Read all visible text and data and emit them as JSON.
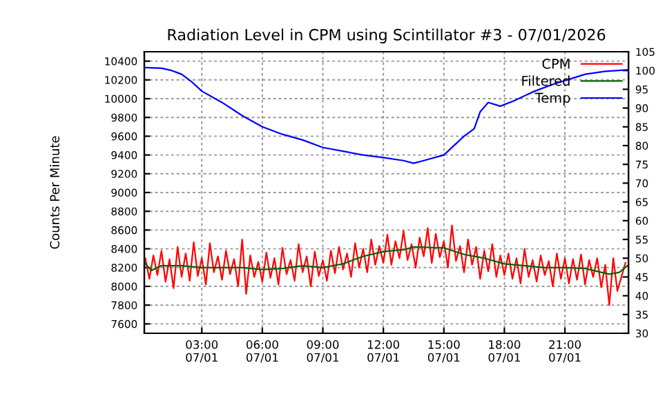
{
  "chart_data": {
    "type": "line",
    "title": "Radiation Level in CPM using Scintillator #3 - 07/01/2026",
    "ylabel": "Counts Per Minute",
    "xlim": [
      "2026-07-01T00:09",
      "2026-07-02T00:09"
    ],
    "xticks": [
      {
        "value": "2026-07-01T03:00",
        "label": "03:00\n07/01"
      },
      {
        "value": "2026-07-01T06:00",
        "label": "06:00\n07/01"
      },
      {
        "value": "2026-07-01T09:00",
        "label": "09:00\n07/01"
      },
      {
        "value": "2026-07-01T12:00",
        "label": "12:00\n07/01"
      },
      {
        "value": "2026-07-01T15:00",
        "label": "15:00\n07/01"
      },
      {
        "value": "2026-07-01T18:00",
        "label": "18:00\n07/01"
      },
      {
        "value": "2026-07-01T21:00",
        "label": "21:00\n07/01"
      }
    ],
    "ylim": [
      7500,
      10500
    ],
    "yticks": [
      7600,
      7800,
      8000,
      8200,
      8400,
      8600,
      8800,
      9000,
      9200,
      9400,
      9600,
      9800,
      10000,
      10200,
      10400
    ],
    "y2lim": [
      30,
      105
    ],
    "y2ticks": [
      30,
      35,
      40,
      45,
      50,
      55,
      60,
      65,
      70,
      75,
      80,
      85,
      90,
      95,
      100,
      105
    ],
    "grid": true,
    "legend": "top right",
    "line_style": "solid",
    "marker": "none",
    "series": [
      {
        "name": "CPM",
        "color": "#ff0000",
        "x": [
          "2026-07-01T00:12",
          "2026-07-01T00:24",
          "2026-07-01T00:36",
          "2026-07-01T00:48",
          "2026-07-01T01:00",
          "2026-07-01T01:12",
          "2026-07-01T01:24",
          "2026-07-01T01:36",
          "2026-07-01T01:48",
          "2026-07-01T02:00",
          "2026-07-01T02:12",
          "2026-07-01T02:24",
          "2026-07-01T02:36",
          "2026-07-01T02:48",
          "2026-07-01T03:00",
          "2026-07-01T03:12",
          "2026-07-01T03:24",
          "2026-07-01T03:36",
          "2026-07-01T03:48",
          "2026-07-01T04:00",
          "2026-07-01T04:12",
          "2026-07-01T04:24",
          "2026-07-01T04:36",
          "2026-07-01T04:48",
          "2026-07-01T05:00",
          "2026-07-01T05:12",
          "2026-07-01T05:24",
          "2026-07-01T05:36",
          "2026-07-01T05:48",
          "2026-07-01T06:00",
          "2026-07-01T06:12",
          "2026-07-01T06:24",
          "2026-07-01T06:36",
          "2026-07-01T06:48",
          "2026-07-01T07:00",
          "2026-07-01T07:12",
          "2026-07-01T07:24",
          "2026-07-01T07:36",
          "2026-07-01T07:48",
          "2026-07-01T08:00",
          "2026-07-01T08:12",
          "2026-07-01T08:24",
          "2026-07-01T08:36",
          "2026-07-01T08:48",
          "2026-07-01T09:00",
          "2026-07-01T09:12",
          "2026-07-01T09:24",
          "2026-07-01T09:36",
          "2026-07-01T09:48",
          "2026-07-01T10:00",
          "2026-07-01T10:12",
          "2026-07-01T10:24",
          "2026-07-01T10:36",
          "2026-07-01T10:48",
          "2026-07-01T11:00",
          "2026-07-01T11:12",
          "2026-07-01T11:24",
          "2026-07-01T11:36",
          "2026-07-01T11:48",
          "2026-07-01T12:00",
          "2026-07-01T12:12",
          "2026-07-01T12:24",
          "2026-07-01T12:36",
          "2026-07-01T12:48",
          "2026-07-01T13:00",
          "2026-07-01T13:12",
          "2026-07-01T13:24",
          "2026-07-01T13:36",
          "2026-07-01T13:48",
          "2026-07-01T14:00",
          "2026-07-01T14:12",
          "2026-07-01T14:24",
          "2026-07-01T14:36",
          "2026-07-01T14:48",
          "2026-07-01T15:00",
          "2026-07-01T15:12",
          "2026-07-01T15:24",
          "2026-07-01T15:36",
          "2026-07-01T15:48",
          "2026-07-01T16:00",
          "2026-07-01T16:12",
          "2026-07-01T16:24",
          "2026-07-01T16:36",
          "2026-07-01T16:48",
          "2026-07-01T17:00",
          "2026-07-01T17:12",
          "2026-07-01T17:24",
          "2026-07-01T17:36",
          "2026-07-01T17:48",
          "2026-07-01T18:00",
          "2026-07-01T18:12",
          "2026-07-01T18:24",
          "2026-07-01T18:36",
          "2026-07-01T18:48",
          "2026-07-01T19:00",
          "2026-07-01T19:12",
          "2026-07-01T19:24",
          "2026-07-01T19:36",
          "2026-07-01T19:48",
          "2026-07-01T20:00",
          "2026-07-01T20:12",
          "2026-07-01T20:24",
          "2026-07-01T20:36",
          "2026-07-01T20:48",
          "2026-07-01T21:00",
          "2026-07-01T21:12",
          "2026-07-01T21:24",
          "2026-07-01T21:36",
          "2026-07-01T21:48",
          "2026-07-01T22:00",
          "2026-07-01T22:12",
          "2026-07-01T22:24",
          "2026-07-01T22:36",
          "2026-07-01T22:48",
          "2026-07-01T23:00",
          "2026-07-01T23:12",
          "2026-07-01T23:24",
          "2026-07-01T23:36",
          "2026-07-01T23:48",
          "2026-07-02T00:00"
        ],
        "values": [
          8300,
          8080,
          8330,
          8120,
          8380,
          8050,
          8290,
          7980,
          8420,
          8100,
          8350,
          8060,
          8470,
          8110,
          8300,
          8020,
          8460,
          8150,
          8320,
          8070,
          8380,
          8130,
          8290,
          8000,
          8500,
          7920,
          8330,
          8100,
          8260,
          8050,
          8360,
          8090,
          8300,
          8020,
          8410,
          8130,
          8280,
          8060,
          8450,
          8150,
          8320,
          8000,
          8370,
          8110,
          8280,
          8060,
          8380,
          8140,
          8420,
          8180,
          8350,
          8100,
          8460,
          8200,
          8400,
          8150,
          8500,
          8230,
          8430,
          8250,
          8550,
          8230,
          8480,
          8300,
          8590,
          8280,
          8450,
          8200,
          8520,
          8320,
          8620,
          8250,
          8560,
          8310,
          8480,
          8200,
          8650,
          8270,
          8430,
          8150,
          8500,
          8230,
          8420,
          8080,
          8380,
          8160,
          8450,
          8100,
          8330,
          8120,
          8350,
          8080,
          8300,
          8030,
          8400,
          8100,
          8280,
          8050,
          8330,
          8120,
          8270,
          8000,
          8350,
          8080,
          8300,
          8030,
          8290,
          8070,
          8340,
          8020,
          8280,
          8100,
          8300,
          7990,
          8230,
          7800,
          8300,
          7950,
          8100,
          8250
        ]
      },
      {
        "name": "Filtered",
        "color": "#006400",
        "x": [
          "2026-07-01T00:09",
          "2026-07-01T00:30",
          "2026-07-01T01:00",
          "2026-07-01T02:00",
          "2026-07-01T03:00",
          "2026-07-01T04:00",
          "2026-07-01T05:00",
          "2026-07-01T06:00",
          "2026-07-01T07:00",
          "2026-07-01T08:00",
          "2026-07-01T09:00",
          "2026-07-01T10:00",
          "2026-07-01T11:00",
          "2026-07-01T12:00",
          "2026-07-01T13:00",
          "2026-07-01T13:30",
          "2026-07-01T15:00",
          "2026-07-01T16:00",
          "2026-07-01T17:00",
          "2026-07-01T18:00",
          "2026-07-01T19:00",
          "2026-07-01T20:00",
          "2026-07-01T21:00",
          "2026-07-01T22:00",
          "2026-07-01T23:12",
          "2026-07-01T23:42",
          "2026-07-02T00:06"
        ],
        "values": [
          8250,
          8170,
          8220,
          8220,
          8200,
          8200,
          8200,
          8180,
          8190,
          8220,
          8200,
          8240,
          8320,
          8370,
          8390,
          8420,
          8410,
          8340,
          8300,
          8240,
          8220,
          8200,
          8200,
          8190,
          8130,
          8150,
          8220
        ]
      },
      {
        "name": "Temp",
        "color": "#0000ff",
        "axis": "y2",
        "x": [
          "2026-07-01T00:09",
          "2026-07-01T01:00",
          "2026-07-01T01:30",
          "2026-07-01T02:00",
          "2026-07-01T02:30",
          "2026-07-01T03:00",
          "2026-07-01T04:00",
          "2026-07-01T05:00",
          "2026-07-01T06:00",
          "2026-07-01T07:00",
          "2026-07-01T08:00",
          "2026-07-01T09:00",
          "2026-07-01T10:00",
          "2026-07-01T11:00",
          "2026-07-01T12:00",
          "2026-07-01T13:00",
          "2026-07-01T13:30",
          "2026-07-01T14:00",
          "2026-07-01T15:00",
          "2026-07-01T16:00",
          "2026-07-01T16:30",
          "2026-07-01T16:48",
          "2026-07-01T17:12",
          "2026-07-01T17:48",
          "2026-07-01T18:30",
          "2026-07-01T19:30",
          "2026-07-01T20:30",
          "2026-07-01T21:00",
          "2026-07-01T22:00",
          "2026-07-01T23:00",
          "2026-07-02T00:06"
        ],
        "values": [
          100.8,
          100.6,
          100,
          99,
          97,
          94.5,
          91.5,
          88,
          85,
          83,
          81.5,
          79.5,
          78.5,
          77.5,
          76.8,
          76,
          75.3,
          76,
          77.5,
          82.5,
          84.5,
          89,
          91.5,
          90.5,
          92,
          94.5,
          96.5,
          97.3,
          99,
          99.8,
          100.2
        ]
      }
    ]
  }
}
